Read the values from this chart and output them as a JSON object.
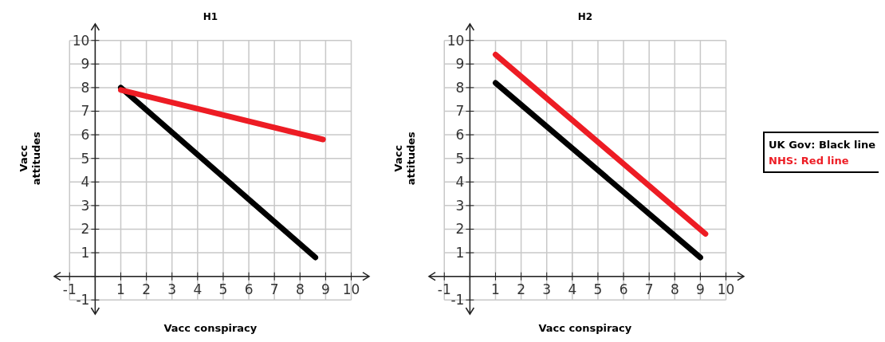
{
  "chart_data": [
    {
      "type": "line",
      "title": "H1",
      "xlabel": "Vacc conspiracy",
      "ylabel": "Vacc\nattitudes",
      "xlim": [
        -1.6,
        10.7
      ],
      "ylim": [
        -1.6,
        10.7
      ],
      "xticks": [
        -1,
        {
          "value": 0,
          "label": null
        },
        1,
        2,
        3,
        4,
        5,
        6,
        7,
        8,
        9,
        10
      ],
      "yticks": [
        -1,
        {
          "value": 0,
          "label": null
        },
        1,
        2,
        3,
        4,
        5,
        6,
        7,
        8,
        9,
        10
      ],
      "grid": true,
      "marker": "none",
      "line_style": "solid",
      "legend": false,
      "series": [
        {
          "color": "#000000",
          "x": [
            1,
            8.6
          ],
          "values": [
            8,
            0.8
          ]
        },
        {
          "color": "#ed1c24",
          "x": [
            1,
            8.9
          ],
          "values": [
            7.9,
            5.8
          ]
        }
      ]
    },
    {
      "type": "line",
      "title": "H2",
      "xlabel": "Vacc conspiracy",
      "ylabel": "Vacc\nattitudes",
      "xlim": [
        -1.6,
        10.7
      ],
      "ylim": [
        -1.6,
        10.7
      ],
      "xticks": [
        -1,
        {
          "value": 0,
          "label": null
        },
        1,
        2,
        3,
        4,
        5,
        6,
        7,
        8,
        9,
        10
      ],
      "yticks": [
        -1,
        {
          "value": 0,
          "label": null
        },
        1,
        2,
        3,
        4,
        5,
        6,
        7,
        8,
        9,
        10
      ],
      "grid": true,
      "marker": "none",
      "line_style": "solid",
      "legend": "right",
      "series": [
        {
          "name": "UK Gov: Black line",
          "color": "#000000",
          "x": [
            1,
            9
          ],
          "values": [
            8.2,
            0.8
          ]
        },
        {
          "name": "NHS: Red line",
          "color": "#ed1c24",
          "x": [
            1,
            9.2
          ],
          "values": [
            9.4,
            1.8
          ]
        }
      ]
    }
  ]
}
